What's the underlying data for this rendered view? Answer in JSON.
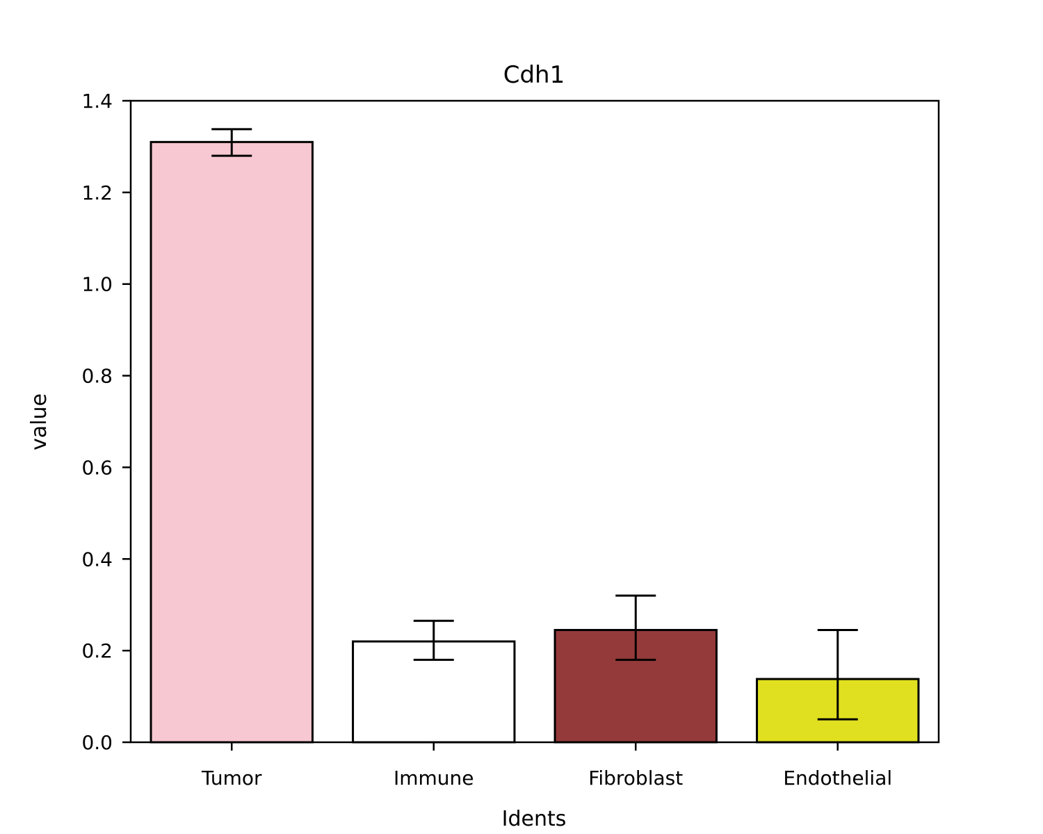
{
  "chart_data": {
    "type": "bar",
    "title": "Cdh1",
    "xlabel": "Idents",
    "ylabel": "value",
    "categories": [
      "Tumor",
      "Immune",
      "Fibroblast",
      "Endothelial"
    ],
    "values": [
      1.31,
      0.22,
      0.245,
      0.138
    ],
    "error_low": [
      1.28,
      0.18,
      0.18,
      0.05
    ],
    "error_high": [
      1.338,
      0.265,
      0.32,
      0.245
    ],
    "colors": [
      "#f7c8d1",
      "#ffffff",
      "#953a3a",
      "#e0e020"
    ],
    "ylim": [
      0,
      1.4
    ],
    "yticks": [
      "0.0",
      "0.2",
      "0.4",
      "0.6",
      "0.8",
      "1.0",
      "1.2",
      "1.4"
    ],
    "ytick_values": [
      0,
      0.2,
      0.4,
      0.6,
      0.8,
      1.0,
      1.2,
      1.4
    ],
    "legend": "none",
    "grid": false
  }
}
